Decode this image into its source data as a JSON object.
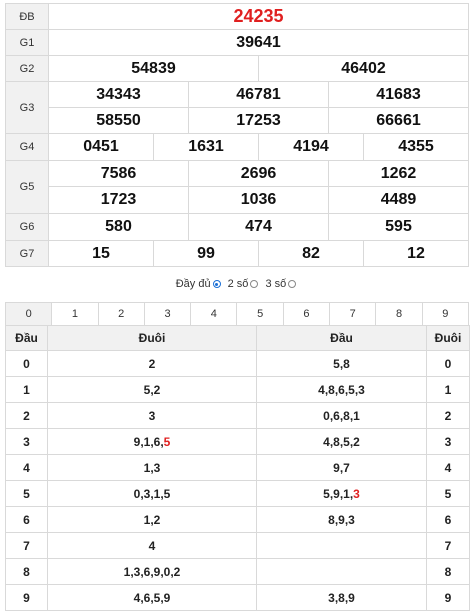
{
  "results": {
    "rows": [
      {
        "label": "ĐB",
        "numbers": [
          "24235"
        ]
      },
      {
        "label": "G1",
        "numbers": [
          "39641"
        ]
      },
      {
        "label": "G2",
        "numbers": [
          "54839",
          "46402"
        ]
      },
      {
        "label": "G3",
        "numbers": [
          "34343",
          "46781",
          "41683",
          "58550",
          "17253",
          "66661"
        ]
      },
      {
        "label": "G4",
        "numbers": [
          "0451",
          "1631",
          "4194",
          "4355"
        ]
      },
      {
        "label": "G5",
        "numbers": [
          "7586",
          "2696",
          "1262",
          "1723",
          "1036",
          "4489"
        ]
      },
      {
        "label": "G6",
        "numbers": [
          "580",
          "474",
          "595"
        ]
      },
      {
        "label": "G7",
        "numbers": [
          "15",
          "99",
          "82",
          "12"
        ]
      }
    ]
  },
  "options": {
    "full_label": "Đầy đủ",
    "two_label": "2 số",
    "three_label": "3 số",
    "selected": "2 số"
  },
  "digit_filter": [
    "0",
    "1",
    "2",
    "3",
    "4",
    "5",
    "6",
    "7",
    "8",
    "9"
  ],
  "loto": {
    "headers": [
      "Đầu",
      "Đuôi",
      "Đầu",
      "Đuôi"
    ],
    "rows": [
      {
        "head": "0",
        "tails": "2",
        "heads": "5,8",
        "tail": "0"
      },
      {
        "head": "1",
        "tails": "5,2",
        "heads": "4,8,6,5,3",
        "tail": "1"
      },
      {
        "head": "2",
        "tails": "3",
        "heads": "0,6,8,1",
        "tail": "2"
      },
      {
        "head": "3",
        "tails": "9,1,6,",
        "tails_special": "5",
        "heads": "4,8,5,2",
        "tail": "3"
      },
      {
        "head": "4",
        "tails": "1,3",
        "heads": "9,7",
        "tail": "4"
      },
      {
        "head": "5",
        "tails": "0,3,1,5",
        "heads": "5,9,1,",
        "heads_special": "3",
        "tail": "5"
      },
      {
        "head": "6",
        "tails": "1,2",
        "heads": "8,9,3",
        "tail": "6"
      },
      {
        "head": "7",
        "tails": "4",
        "heads": "",
        "tail": "7"
      },
      {
        "head": "8",
        "tails": "1,3,6,9,0,2",
        "heads": "",
        "tail": "8"
      },
      {
        "head": "9",
        "tails": "4,6,5,9",
        "heads": "3,8,9",
        "tail": "9"
      }
    ]
  }
}
